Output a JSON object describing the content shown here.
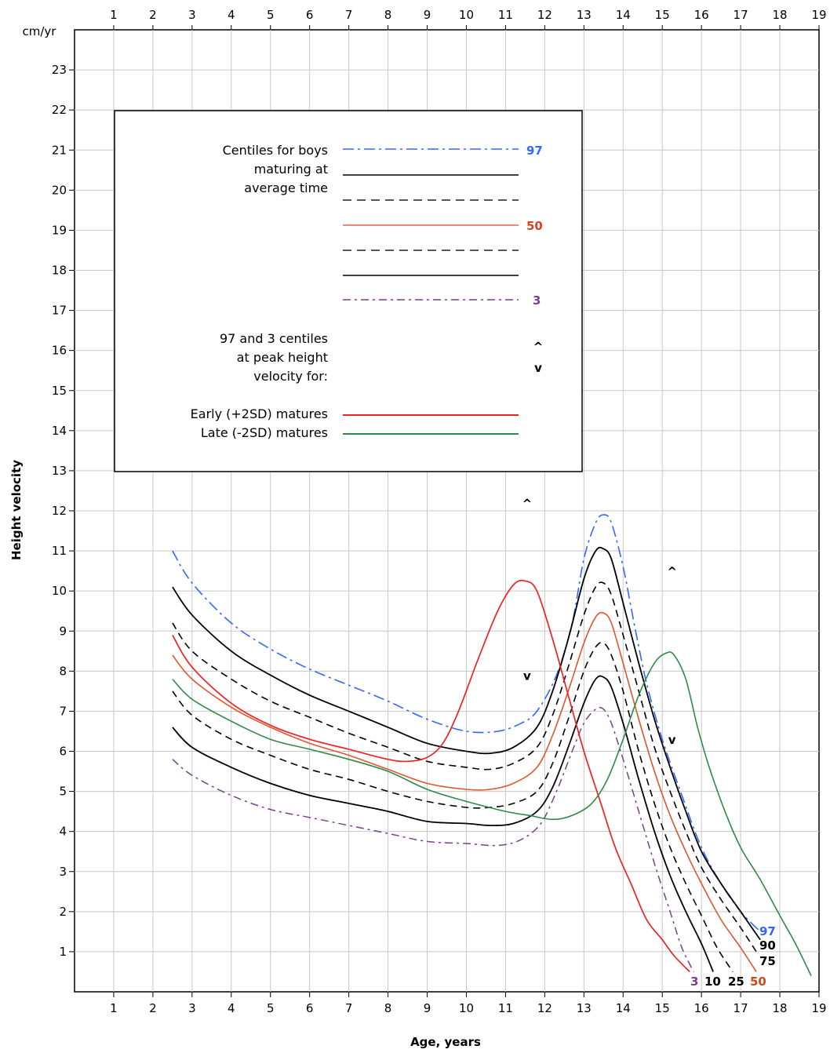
{
  "chart_data": {
    "type": "line",
    "title": "",
    "unit_label": "cm/yr",
    "ylabel": "Height velocity",
    "xlabel": "Age, years",
    "xlim": [
      0,
      19
    ],
    "ylim": [
      0,
      24
    ],
    "x_ticks": [
      1,
      2,
      3,
      4,
      5,
      6,
      7,
      8,
      9,
      10,
      11,
      12,
      13,
      14,
      15,
      16,
      17,
      18,
      19
    ],
    "y_ticks": [
      1,
      2,
      3,
      4,
      5,
      6,
      7,
      8,
      9,
      10,
      11,
      12,
      13,
      14,
      15,
      16,
      17,
      18,
      19,
      20,
      21,
      22,
      23
    ],
    "grid": true,
    "colors": {
      "centile_97": "#3366ff",
      "centile_90": "#000000",
      "centile_75": "#000000",
      "centile_50": "#e0552a",
      "centile_25": "#000000",
      "centile_10": "#000000",
      "centile_3": "#7a3f8f",
      "early": "#ee2222",
      "late": "#2f8a4a"
    },
    "legend": {
      "line1": "Centiles for boys",
      "line2": "maturing at",
      "line3": "average time",
      "label_97": "97",
      "label_50": "50",
      "label_3": "3",
      "peak_line1": "97 and 3 centiles",
      "peak_line2": "at peak height",
      "peak_line3": "velocity for:",
      "peak_up_symbol": "^",
      "peak_down_symbol": "v",
      "early_label": "Early (+2SD) matures",
      "late_label": "Late (-2SD) matures"
    },
    "series": [
      {
        "key": "centile_97",
        "end_label": "97",
        "points": [
          [
            2.5,
            11.0
          ],
          [
            3,
            10.2
          ],
          [
            4,
            9.2
          ],
          [
            5,
            8.55
          ],
          [
            6,
            8.05
          ],
          [
            7,
            7.65
          ],
          [
            8,
            7.25
          ],
          [
            9,
            6.8
          ],
          [
            10,
            6.5
          ],
          [
            10.8,
            6.5
          ],
          [
            11.4,
            6.7
          ],
          [
            11.8,
            7.0
          ],
          [
            12.3,
            7.9
          ],
          [
            12.7,
            9.2
          ],
          [
            13,
            10.8
          ],
          [
            13.3,
            11.7
          ],
          [
            13.5,
            11.9
          ],
          [
            13.7,
            11.7
          ],
          [
            14,
            10.6
          ],
          [
            14.3,
            9.1
          ],
          [
            14.6,
            7.7
          ],
          [
            15,
            6.3
          ],
          [
            15.5,
            4.9
          ],
          [
            16,
            3.6
          ],
          [
            16.5,
            2.7
          ],
          [
            17,
            2.0
          ],
          [
            17.5,
            1.5
          ]
        ]
      },
      {
        "key": "centile_90",
        "end_label": "90",
        "points": [
          [
            2.5,
            10.1
          ],
          [
            3,
            9.4
          ],
          [
            4,
            8.5
          ],
          [
            5,
            7.9
          ],
          [
            6,
            7.4
          ],
          [
            7,
            7.0
          ],
          [
            8,
            6.6
          ],
          [
            9,
            6.2
          ],
          [
            10,
            6.0
          ],
          [
            10.6,
            5.95
          ],
          [
            11.2,
            6.1
          ],
          [
            11.8,
            6.6
          ],
          [
            12.2,
            7.5
          ],
          [
            12.6,
            8.8
          ],
          [
            13,
            10.3
          ],
          [
            13.3,
            11.0
          ],
          [
            13.5,
            11.05
          ],
          [
            13.7,
            10.8
          ],
          [
            14,
            9.7
          ],
          [
            14.4,
            8.2
          ],
          [
            14.8,
            6.8
          ],
          [
            15.2,
            5.6
          ],
          [
            15.6,
            4.5
          ],
          [
            16,
            3.5
          ],
          [
            16.5,
            2.7
          ],
          [
            17,
            2.0
          ],
          [
            17.5,
            1.3
          ]
        ]
      },
      {
        "key": "centile_75",
        "end_label": "75",
        "points": [
          [
            2.5,
            9.2
          ],
          [
            3,
            8.5
          ],
          [
            4,
            7.8
          ],
          [
            5,
            7.25
          ],
          [
            6,
            6.85
          ],
          [
            7,
            6.45
          ],
          [
            8,
            6.1
          ],
          [
            9,
            5.75
          ],
          [
            10,
            5.6
          ],
          [
            10.6,
            5.55
          ],
          [
            11.2,
            5.7
          ],
          [
            11.8,
            6.1
          ],
          [
            12.2,
            6.9
          ],
          [
            12.6,
            8.1
          ],
          [
            13,
            9.4
          ],
          [
            13.3,
            10.1
          ],
          [
            13.5,
            10.2
          ],
          [
            13.7,
            9.9
          ],
          [
            14,
            8.9
          ],
          [
            14.4,
            7.5
          ],
          [
            14.8,
            6.1
          ],
          [
            15.2,
            5.0
          ],
          [
            15.6,
            4.0
          ],
          [
            16,
            3.1
          ],
          [
            16.5,
            2.3
          ],
          [
            17,
            1.6
          ],
          [
            17.4,
            1.0
          ]
        ]
      },
      {
        "key": "centile_50",
        "end_label": "50",
        "points": [
          [
            2.5,
            8.4
          ],
          [
            3,
            7.8
          ],
          [
            4,
            7.1
          ],
          [
            5,
            6.6
          ],
          [
            6,
            6.2
          ],
          [
            7,
            5.9
          ],
          [
            8,
            5.55
          ],
          [
            9,
            5.2
          ],
          [
            10,
            5.05
          ],
          [
            10.6,
            5.05
          ],
          [
            11.2,
            5.2
          ],
          [
            11.8,
            5.6
          ],
          [
            12.2,
            6.4
          ],
          [
            12.6,
            7.5
          ],
          [
            13,
            8.7
          ],
          [
            13.3,
            9.35
          ],
          [
            13.5,
            9.45
          ],
          [
            13.7,
            9.2
          ],
          [
            14,
            8.2
          ],
          [
            14.4,
            6.8
          ],
          [
            14.8,
            5.5
          ],
          [
            15.2,
            4.4
          ],
          [
            15.6,
            3.5
          ],
          [
            16,
            2.7
          ],
          [
            16.5,
            1.8
          ],
          [
            17,
            1.1
          ],
          [
            17.4,
            0.5
          ]
        ]
      },
      {
        "key": "centile_25",
        "end_label": "25",
        "points": [
          [
            2.5,
            7.5
          ],
          [
            3,
            6.9
          ],
          [
            4,
            6.3
          ],
          [
            5,
            5.9
          ],
          [
            6,
            5.55
          ],
          [
            7,
            5.3
          ],
          [
            8,
            5.0
          ],
          [
            9,
            4.75
          ],
          [
            10,
            4.6
          ],
          [
            10.6,
            4.6
          ],
          [
            11.2,
            4.7
          ],
          [
            11.8,
            5.0
          ],
          [
            12.2,
            5.7
          ],
          [
            12.6,
            6.8
          ],
          [
            13,
            8.0
          ],
          [
            13.3,
            8.6
          ],
          [
            13.5,
            8.7
          ],
          [
            13.7,
            8.4
          ],
          [
            14,
            7.5
          ],
          [
            14.4,
            6.0
          ],
          [
            14.8,
            4.7
          ],
          [
            15.2,
            3.6
          ],
          [
            15.6,
            2.7
          ],
          [
            16,
            1.9
          ],
          [
            16.4,
            1.1
          ],
          [
            16.8,
            0.5
          ]
        ]
      },
      {
        "key": "centile_10",
        "end_label": "10",
        "points": [
          [
            2.5,
            6.6
          ],
          [
            3,
            6.1
          ],
          [
            4,
            5.6
          ],
          [
            5,
            5.2
          ],
          [
            6,
            4.9
          ],
          [
            7,
            4.7
          ],
          [
            8,
            4.5
          ],
          [
            9,
            4.25
          ],
          [
            10,
            4.2
          ],
          [
            10.6,
            4.15
          ],
          [
            11.2,
            4.2
          ],
          [
            11.8,
            4.5
          ],
          [
            12.2,
            5.1
          ],
          [
            12.6,
            6.1
          ],
          [
            13,
            7.2
          ],
          [
            13.3,
            7.8
          ],
          [
            13.5,
            7.85
          ],
          [
            13.7,
            7.6
          ],
          [
            14,
            6.7
          ],
          [
            14.4,
            5.3
          ],
          [
            14.8,
            4.0
          ],
          [
            15.2,
            2.9
          ],
          [
            15.6,
            2.0
          ],
          [
            16,
            1.2
          ],
          [
            16.3,
            0.5
          ]
        ]
      },
      {
        "key": "centile_3",
        "end_label": "3",
        "points": [
          [
            2.5,
            5.8
          ],
          [
            3,
            5.4
          ],
          [
            4,
            4.9
          ],
          [
            5,
            4.55
          ],
          [
            6,
            4.35
          ],
          [
            7,
            4.15
          ],
          [
            8,
            3.95
          ],
          [
            9,
            3.75
          ],
          [
            10,
            3.7
          ],
          [
            10.8,
            3.65
          ],
          [
            11.4,
            3.8
          ],
          [
            11.9,
            4.2
          ],
          [
            12.3,
            5.0
          ],
          [
            12.7,
            6.0
          ],
          [
            13,
            6.7
          ],
          [
            13.3,
            7.05
          ],
          [
            13.5,
            7.05
          ],
          [
            13.7,
            6.7
          ],
          [
            14,
            5.8
          ],
          [
            14.4,
            4.5
          ],
          [
            14.8,
            3.2
          ],
          [
            15.2,
            2.0
          ],
          [
            15.5,
            1.1
          ],
          [
            15.8,
            0.5
          ]
        ]
      },
      {
        "key": "early",
        "end_label": "",
        "points": [
          [
            2.5,
            8.9
          ],
          [
            3,
            8.1
          ],
          [
            4,
            7.2
          ],
          [
            5,
            6.65
          ],
          [
            6,
            6.3
          ],
          [
            7,
            6.05
          ],
          [
            8,
            5.8
          ],
          [
            8.5,
            5.75
          ],
          [
            9,
            5.85
          ],
          [
            9.4,
            6.2
          ],
          [
            9.8,
            7.0
          ],
          [
            10.3,
            8.3
          ],
          [
            10.8,
            9.5
          ],
          [
            11.2,
            10.15
          ],
          [
            11.5,
            10.25
          ],
          [
            11.8,
            10.0
          ],
          [
            12.2,
            8.8
          ],
          [
            12.6,
            7.4
          ],
          [
            13,
            6.0
          ],
          [
            13.4,
            4.8
          ],
          [
            13.8,
            3.6
          ],
          [
            14.2,
            2.7
          ],
          [
            14.6,
            1.8
          ],
          [
            15,
            1.3
          ],
          [
            15.3,
            0.9
          ],
          [
            15.7,
            0.5
          ]
        ]
      },
      {
        "key": "late",
        "end_label": "",
        "points": [
          [
            2.5,
            7.8
          ],
          [
            3,
            7.3
          ],
          [
            4,
            6.75
          ],
          [
            5,
            6.3
          ],
          [
            6,
            6.05
          ],
          [
            7,
            5.8
          ],
          [
            8,
            5.5
          ],
          [
            9,
            5.05
          ],
          [
            10,
            4.75
          ],
          [
            11,
            4.5
          ],
          [
            11.6,
            4.4
          ],
          [
            12.2,
            4.3
          ],
          [
            12.7,
            4.4
          ],
          [
            13.2,
            4.7
          ],
          [
            13.6,
            5.3
          ],
          [
            14,
            6.3
          ],
          [
            14.4,
            7.4
          ],
          [
            14.8,
            8.2
          ],
          [
            15.1,
            8.45
          ],
          [
            15.3,
            8.4
          ],
          [
            15.6,
            7.8
          ],
          [
            15.9,
            6.6
          ],
          [
            16.2,
            5.6
          ],
          [
            16.6,
            4.5
          ],
          [
            17,
            3.6
          ],
          [
            17.5,
            2.8
          ],
          [
            18,
            1.9
          ],
          [
            18.4,
            1.2
          ],
          [
            18.8,
            0.4
          ]
        ]
      }
    ],
    "peak_markers": [
      {
        "symbol": "^",
        "x": 11.55,
        "y": 12.2
      },
      {
        "symbol": "v",
        "x": 11.55,
        "y": 7.9
      },
      {
        "symbol": "^",
        "x": 15.25,
        "y": 10.5
      },
      {
        "symbol": "v",
        "x": 15.25,
        "y": 6.3
      }
    ]
  }
}
